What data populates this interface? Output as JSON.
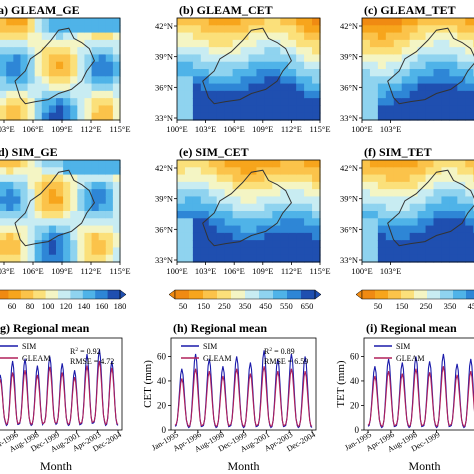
{
  "colors": {
    "map_scale": [
      "#1f4fb0",
      "#2e86d6",
      "#4fb3e8",
      "#8fd3ef",
      "#c8ecf2",
      "#f4f5c4",
      "#fbe07a",
      "#fbc34a",
      "#f7a51c",
      "#f08a12"
    ],
    "sim_line": "#1a1aaa",
    "gleam_line": "#b0205a",
    "boundary": "#333333"
  },
  "maps": [
    {
      "id": "a",
      "title": "(a) GLEAM_GE",
      "colorbar": "ge",
      "x_ticks": [
        "103°E",
        "106°E",
        "109°E",
        "112°E",
        "115°E"
      ],
      "y_ticks": []
    },
    {
      "id": "b",
      "title": "(b) GLEAM_CET",
      "colorbar": "cet",
      "x_ticks": [
        "100°E",
        "103°E",
        "106°E",
        "109°E",
        "112°E",
        "115°E"
      ],
      "y_ticks": [
        "42°N",
        "39°N",
        "36°N",
        "33°N"
      ]
    },
    {
      "id": "c",
      "title": "(c) GLEAM_TET",
      "colorbar": "tet",
      "x_ticks": [
        "100°E",
        "103°E"
      ],
      "y_ticks": [
        "42°N",
        "39°N",
        "36°N",
        "33°N"
      ]
    },
    {
      "id": "d",
      "title": "(d) SIM_GE",
      "colorbar": "ge",
      "x_ticks": [
        "103°E",
        "106°E",
        "109°E",
        "112°E",
        "115°E"
      ],
      "y_ticks": []
    },
    {
      "id": "e",
      "title": "(e) SIM_CET",
      "colorbar": "cet",
      "x_ticks": [
        "100°E",
        "103°E",
        "106°E",
        "109°E",
        "112°E",
        "115°E"
      ],
      "y_ticks": [
        "42°N",
        "39°N",
        "36°N",
        "33°N"
      ]
    },
    {
      "id": "f",
      "title": "(f) SIM_TET",
      "colorbar": "tet",
      "x_ticks": [
        "100°E",
        "103°E"
      ],
      "y_ticks": [
        "42°N",
        "39°N",
        "36°N",
        "33°N"
      ]
    }
  ],
  "colorbars": {
    "ge": {
      "ticks": [
        "60",
        "80",
        "100",
        "120",
        "140",
        "160",
        "180"
      ]
    },
    "cet": {
      "ticks": [
        "50",
        "150",
        "250",
        "350",
        "450",
        "550",
        "650"
      ]
    },
    "tet": {
      "ticks": [
        "50",
        "150",
        "250",
        "350",
        "450"
      ]
    }
  },
  "chart_data": [
    {
      "type": "line",
      "panel": "g",
      "title": "(g) Regional mean",
      "xlabel": "Month",
      "ylabel": "",
      "x_ticks": [
        "Jan-1995",
        "Apr-1996",
        "Aug-1998",
        "Dec-1999",
        "Aug-2001",
        "Apr-2003",
        "Dec-2004"
      ],
      "legend": [
        "SIM",
        "GLEAM"
      ],
      "stats": {
        "r2_label": "R",
        "r2_value": "= 0.92",
        "rmse": "RMSE = 4.72"
      },
      "ylim": [
        0,
        80
      ],
      "series": [
        {
          "name": "SIM",
          "peaks": [
            48,
            60,
            62,
            56,
            64,
            58,
            52,
            66,
            70,
            60
          ],
          "troughs": [
            6,
            4,
            5,
            4,
            6,
            5,
            4,
            5,
            6,
            4
          ]
        },
        {
          "name": "GLEAM",
          "peaks": [
            44,
            50,
            52,
            48,
            55,
            50,
            46,
            56,
            60,
            54
          ],
          "troughs": [
            7,
            5,
            6,
            5,
            6,
            6,
            5,
            6,
            7,
            5
          ]
        }
      ]
    },
    {
      "type": "line",
      "panel": "h",
      "title": "(h) Regional mean",
      "xlabel": "Month",
      "ylabel": "CET (mm)",
      "y_ticks": [
        "0",
        "20",
        "40",
        "60"
      ],
      "x_ticks": [
        "Jan-1995",
        "Apr-1996",
        "Aug-1998",
        "Dec-1999",
        "Aug-2001",
        "Apr-2003",
        "Dec-2004"
      ],
      "legend": [
        "SIM",
        "GLEAM"
      ],
      "stats": {
        "r2_label": "R",
        "r2_value": "= 0.89",
        "rmse": "RMSE = 6.59"
      },
      "ylim": [
        0,
        75
      ],
      "series": [
        {
          "name": "SIM",
          "peaks": [
            50,
            62,
            58,
            52,
            60,
            55,
            65,
            58,
            62,
            60
          ],
          "troughs": [
            3,
            2,
            3,
            2,
            3,
            2,
            3,
            2,
            3,
            2
          ]
        },
        {
          "name": "GLEAM",
          "peaks": [
            42,
            50,
            48,
            44,
            50,
            46,
            52,
            48,
            50,
            48
          ],
          "troughs": [
            4,
            3,
            4,
            3,
            4,
            3,
            4,
            3,
            4,
            3
          ]
        }
      ]
    },
    {
      "type": "line",
      "panel": "i",
      "title": "(i) Regional mean",
      "xlabel": "Month",
      "ylabel": "TET (mm)",
      "y_ticks": [
        "0",
        "20",
        "40",
        "60"
      ],
      "x_ticks": [
        "Jan-1995",
        "Apr-1996",
        "Aug-1998",
        "Dec-1999"
      ],
      "legend": [
        "SIM",
        "GLEAM"
      ],
      "stats": {
        "r2_label": "R",
        "r2_value": "",
        "rmse": ""
      },
      "ylim": [
        0,
        75
      ],
      "series": [
        {
          "name": "SIM",
          "peaks": [
            52,
            58,
            55,
            60,
            56,
            62,
            54,
            58,
            60,
            56
          ],
          "troughs": [
            3,
            2,
            3,
            2,
            3,
            2,
            3,
            2,
            3,
            2
          ]
        },
        {
          "name": "GLEAM",
          "peaks": [
            44,
            48,
            46,
            50,
            47,
            52,
            45,
            48,
            50,
            47
          ],
          "troughs": [
            4,
            3,
            4,
            3,
            4,
            3,
            4,
            3,
            4,
            3
          ]
        }
      ]
    }
  ]
}
